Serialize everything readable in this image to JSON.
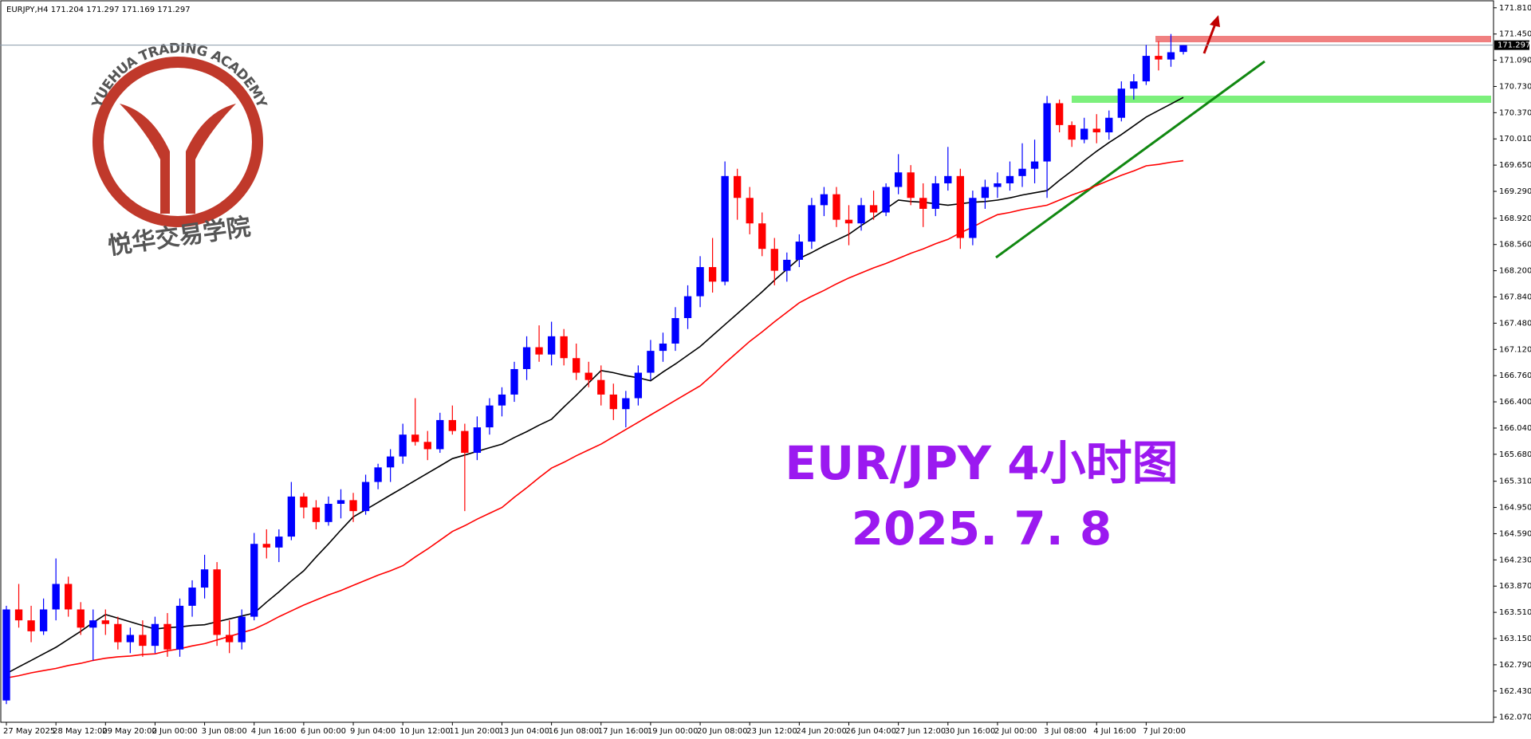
{
  "chart_data": {
    "type": "candlestick",
    "title": "EURJPY,H4  171.204 171.297 171.169 171.297",
    "annotations": [
      "EUR/JPY  4小时图",
      "2025. 7. 8"
    ],
    "watermark": [
      "YUEHUA TRADING ACADEMY",
      "悦华交易学院"
    ],
    "up_color": "#0000ff",
    "down_color": "#ff0000",
    "categories": [
      "27 May 2025",
      null,
      null,
      null,
      "28 May 12:00",
      null,
      null,
      null,
      "29 May 20:00",
      null,
      null,
      null,
      "2 Jun 00:00",
      null,
      null,
      null,
      "3 Jun 08:00",
      null,
      null,
      null,
      "4 Jun 16:00",
      null,
      null,
      null,
      "6 Jun 00:00",
      null,
      null,
      null,
      "9 Jun 04:00",
      null,
      null,
      null,
      "10 Jun 12:00",
      null,
      null,
      null,
      "11 Jun 20:00",
      null,
      null,
      null,
      "13 Jun 04:00",
      null,
      null,
      null,
      "16 Jun 08:00",
      null,
      null,
      null,
      "17 Jun 16:00",
      null,
      null,
      null,
      "19 Jun 00:00",
      null,
      null,
      null,
      "20 Jun 08:00",
      null,
      null,
      null,
      "23 Jun 12:00",
      null,
      null,
      null,
      "24 Jun 20:00",
      null,
      null,
      null,
      "26 Jun 04:00",
      null,
      null,
      null,
      "27 Jun 12:00",
      null,
      null,
      null,
      "30 Jun 16:00",
      null,
      null,
      null,
      "2 Jul 00:00",
      null,
      null,
      null,
      "3 Jul 08:00",
      null,
      null,
      null,
      "4 Jul 16:00",
      null,
      null,
      null,
      "7 Jul 20:00",
      null,
      null,
      null
    ],
    "open": [
      162.3,
      163.55,
      163.4,
      163.25,
      163.55,
      163.9,
      163.55,
      163.3,
      163.4,
      163.35,
      163.1,
      163.2,
      163.05,
      163.35,
      163.0,
      163.6,
      163.85,
      164.1,
      163.2,
      163.1,
      163.45,
      164.45,
      164.4,
      164.55,
      165.1,
      164.95,
      164.75,
      165.0,
      165.05,
      164.9,
      165.3,
      165.5,
      165.65,
      165.95,
      165.85,
      165.75,
      166.15,
      166.0,
      165.7,
      166.05,
      166.35,
      166.5,
      166.85,
      167.15,
      167.05,
      167.3,
      167.0,
      166.8,
      166.7,
      166.5,
      166.3,
      166.45,
      166.8,
      167.1,
      167.2,
      167.55,
      167.85,
      168.25,
      168.05,
      169.5,
      169.2,
      168.85,
      168.5,
      168.2,
      168.35,
      168.6,
      169.1,
      169.25,
      168.9,
      168.85,
      169.1,
      169.0,
      169.35,
      169.55,
      169.2,
      169.05,
      169.4,
      169.5,
      168.65,
      169.2,
      169.35,
      169.4,
      169.5,
      169.6,
      169.7,
      170.5,
      170.2,
      170.0,
      170.15,
      170.1,
      170.3,
      170.7,
      170.8,
      171.15,
      171.1,
      171.204
    ],
    "high": [
      163.6,
      163.9,
      163.6,
      163.7,
      164.25,
      164.0,
      163.65,
      163.55,
      163.55,
      163.45,
      163.3,
      163.4,
      163.45,
      163.5,
      163.7,
      163.95,
      164.3,
      164.2,
      163.4,
      163.55,
      164.6,
      164.65,
      164.65,
      165.3,
      165.15,
      165.05,
      165.1,
      165.2,
      165.15,
      165.4,
      165.55,
      165.75,
      166.1,
      166.45,
      166.0,
      166.25,
      166.35,
      166.1,
      166.2,
      166.45,
      166.6,
      166.95,
      167.3,
      167.45,
      167.5,
      167.4,
      167.2,
      166.95,
      166.9,
      166.65,
      166.55,
      166.9,
      167.25,
      167.35,
      167.7,
      168.0,
      168.4,
      168.65,
      169.7,
      169.6,
      169.35,
      169.0,
      168.65,
      168.45,
      168.7,
      169.2,
      169.35,
      169.35,
      169.1,
      169.2,
      169.3,
      169.4,
      169.8,
      169.65,
      169.4,
      169.5,
      169.9,
      169.6,
      169.3,
      169.45,
      169.55,
      169.7,
      169.95,
      170.0,
      170.6,
      170.55,
      170.25,
      170.3,
      170.35,
      170.4,
      170.8,
      170.9,
      171.3,
      171.35,
      171.45,
      171.297
    ],
    "low": [
      162.25,
      163.3,
      163.1,
      163.2,
      163.4,
      163.45,
      163.2,
      162.85,
      163.2,
      163.0,
      162.95,
      162.9,
      162.95,
      162.9,
      162.9,
      163.45,
      163.7,
      163.05,
      162.95,
      163.0,
      163.4,
      164.25,
      164.2,
      164.5,
      164.8,
      164.65,
      164.7,
      164.8,
      164.75,
      164.85,
      165.2,
      165.3,
      165.55,
      165.8,
      165.6,
      165.7,
      165.95,
      164.9,
      165.6,
      165.95,
      166.2,
      166.4,
      166.7,
      166.95,
      166.9,
      166.9,
      166.7,
      166.6,
      166.35,
      166.15,
      166.05,
      166.35,
      166.7,
      166.95,
      167.1,
      167.4,
      167.7,
      167.9,
      168.0,
      168.9,
      168.7,
      168.4,
      168.0,
      168.05,
      168.25,
      168.5,
      168.95,
      168.8,
      168.55,
      168.75,
      168.9,
      168.95,
      169.25,
      169.1,
      168.8,
      168.95,
      169.3,
      168.5,
      168.55,
      169.05,
      169.2,
      169.3,
      169.35,
      169.4,
      169.2,
      170.1,
      169.9,
      169.95,
      169.95,
      170.0,
      170.25,
      170.55,
      170.75,
      170.95,
      171.0,
      171.169
    ],
    "close": [
      163.55,
      163.4,
      163.25,
      163.55,
      163.9,
      163.55,
      163.3,
      163.4,
      163.35,
      163.1,
      163.2,
      163.05,
      163.35,
      163.0,
      163.6,
      163.85,
      164.1,
      163.2,
      163.1,
      163.45,
      164.45,
      164.4,
      164.55,
      165.1,
      164.95,
      164.75,
      165.0,
      165.05,
      164.9,
      165.3,
      165.5,
      165.65,
      165.95,
      165.85,
      165.75,
      166.15,
      166.0,
      165.7,
      166.05,
      166.35,
      166.5,
      166.85,
      167.15,
      167.05,
      167.3,
      167.0,
      166.8,
      166.7,
      166.5,
      166.3,
      166.45,
      166.8,
      167.1,
      167.2,
      167.55,
      167.85,
      168.25,
      168.05,
      169.5,
      169.2,
      168.85,
      168.5,
      168.2,
      168.35,
      168.6,
      169.1,
      169.25,
      168.9,
      168.85,
      169.1,
      169.0,
      169.35,
      169.55,
      169.2,
      169.05,
      169.4,
      169.5,
      168.65,
      169.2,
      169.35,
      169.4,
      169.5,
      169.6,
      169.7,
      170.5,
      170.2,
      170.0,
      170.15,
      170.1,
      170.3,
      170.7,
      170.8,
      171.15,
      171.1,
      171.2,
      171.297
    ],
    "moving_averages": [
      {
        "color": "#000000",
        "values": [
          162.67,
          162.76,
          162.85,
          162.94,
          163.03,
          163.14,
          163.25,
          163.37,
          163.48,
          163.43,
          163.38,
          163.33,
          163.28,
          163.3,
          163.31,
          163.33,
          163.34,
          163.38,
          163.42,
          163.46,
          163.5,
          163.65,
          163.79,
          163.94,
          164.08,
          164.27,
          164.45,
          164.64,
          164.82,
          164.92,
          165.02,
          165.12,
          165.22,
          165.32,
          165.42,
          165.52,
          165.62,
          165.67,
          165.72,
          165.77,
          165.82,
          165.91,
          165.99,
          166.08,
          166.16,
          166.33,
          166.49,
          166.66,
          166.83,
          166.8,
          166.76,
          166.73,
          166.69,
          166.81,
          166.92,
          167.04,
          167.16,
          167.31,
          167.46,
          167.61,
          167.76,
          167.91,
          168.07,
          168.22,
          168.37,
          168.45,
          168.54,
          168.62,
          168.7,
          168.82,
          168.93,
          169.05,
          169.17,
          169.15,
          169.14,
          169.12,
          169.1,
          169.12,
          169.14,
          169.15,
          169.17,
          169.2,
          169.24,
          169.27,
          169.3,
          169.44,
          169.57,
          169.71,
          169.84,
          169.96,
          170.07,
          170.19,
          170.31,
          170.4,
          170.49,
          170.58
        ]
      },
      {
        "color": "#ff0000",
        "values": [
          162.61,
          162.64,
          162.68,
          162.71,
          162.74,
          162.78,
          162.81,
          162.85,
          162.88,
          162.9,
          162.91,
          162.93,
          162.94,
          162.98,
          163.01,
          163.05,
          163.08,
          163.13,
          163.18,
          163.23,
          163.28,
          163.36,
          163.45,
          163.53,
          163.61,
          163.68,
          163.75,
          163.81,
          163.88,
          163.95,
          164.02,
          164.08,
          164.15,
          164.27,
          164.38,
          164.5,
          164.62,
          164.7,
          164.79,
          164.87,
          164.95,
          165.09,
          165.22,
          165.36,
          165.49,
          165.57,
          165.66,
          165.74,
          165.82,
          165.92,
          166.02,
          166.12,
          166.22,
          166.32,
          166.42,
          166.52,
          166.62,
          166.77,
          166.93,
          167.08,
          167.23,
          167.36,
          167.5,
          167.63,
          167.76,
          167.85,
          167.93,
          168.02,
          168.1,
          168.17,
          168.24,
          168.3,
          168.37,
          168.44,
          168.5,
          168.57,
          168.63,
          168.72,
          168.8,
          168.89,
          168.97,
          169.0,
          169.04,
          169.07,
          169.1,
          169.17,
          169.24,
          169.3,
          169.37,
          169.44,
          169.51,
          169.57,
          169.64,
          169.66,
          169.69,
          169.71
        ]
      }
    ],
    "ylim": [
      161.99,
      171.917
    ],
    "yticks": [
      {
        "value": 162.07,
        "label": "162.070"
      },
      {
        "value": 162.43,
        "label": "162.430"
      },
      {
        "value": 162.79,
        "label": "162.790"
      },
      {
        "value": 163.15,
        "label": "163.150"
      },
      {
        "value": 163.51,
        "label": "163.510"
      },
      {
        "value": 163.87,
        "label": "163.870"
      },
      {
        "value": 164.23,
        "label": "164.230"
      },
      {
        "value": 164.59,
        "label": "164.590"
      },
      {
        "value": 164.95,
        "label": "164.950"
      },
      {
        "value": 165.31,
        "label": "165.310"
      },
      {
        "value": 165.68,
        "label": "165.680"
      },
      {
        "value": 166.04,
        "label": "166.040"
      },
      {
        "value": 166.4,
        "label": "166.400"
      },
      {
        "value": 166.76,
        "label": "166.760"
      },
      {
        "value": 167.12,
        "label": "167.120"
      },
      {
        "value": 167.48,
        "label": "167.480"
      },
      {
        "value": 167.84,
        "label": "167.840"
      },
      {
        "value": 168.2,
        "label": "168.200"
      },
      {
        "value": 168.56,
        "label": "168.560"
      },
      {
        "value": 168.92,
        "label": "168.920"
      },
      {
        "value": 169.29,
        "label": "169.290"
      },
      {
        "value": 169.65,
        "label": "169.650"
      },
      {
        "value": 170.01,
        "label": "170.010"
      },
      {
        "value": 170.37,
        "label": "170.370"
      },
      {
        "value": 170.73,
        "label": "170.730"
      },
      {
        "value": 171.09,
        "label": "171.090"
      },
      {
        "value": 171.45,
        "label": "171.450"
      },
      {
        "value": 171.81,
        "label": "171.810"
      }
    ],
    "grid": false
  }
}
